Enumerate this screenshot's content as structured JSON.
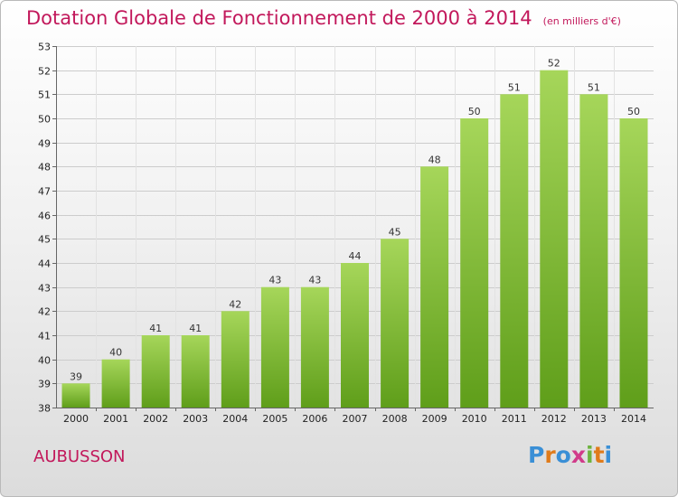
{
  "header": {
    "title": "Dotation Globale de Fonctionnement de 2000 à 2014",
    "unit": "(en milliers d'€)"
  },
  "footer": {
    "commune": "AUBUSSON",
    "logo": [
      "P",
      "r",
      "o",
      "x",
      "i",
      "t",
      "i"
    ],
    "logo_colors": [
      "#3a8fd6",
      "#e07b1a",
      "#3a8fd6",
      "#d13b8a",
      "#6db33f",
      "#e07b1a",
      "#3a8fd6"
    ]
  },
  "colors": {
    "title": "#c2185b",
    "bar_light": "#a6d65a",
    "bar_dark": "#5f9e1a",
    "grid": "#cccccc"
  },
  "chart_data": {
    "type": "bar",
    "title": "Dotation Globale de Fonctionnement de 2000 à 2014",
    "subtitle": "(en milliers d'€)",
    "xlabel": "",
    "ylabel": "",
    "categories": [
      "2000",
      "2001",
      "2002",
      "2003",
      "2004",
      "2005",
      "2006",
      "2007",
      "2008",
      "2009",
      "2010",
      "2011",
      "2012",
      "2013",
      "2014"
    ],
    "values": [
      39,
      40,
      41,
      41,
      42,
      43,
      43,
      44,
      45,
      48,
      50,
      51,
      52,
      51,
      50
    ],
    "ylim": [
      38,
      53
    ],
    "yticks": [
      38,
      39,
      40,
      41,
      42,
      43,
      44,
      45,
      46,
      47,
      48,
      49,
      50,
      51,
      52,
      53
    ],
    "grid": true,
    "legend": "none"
  }
}
